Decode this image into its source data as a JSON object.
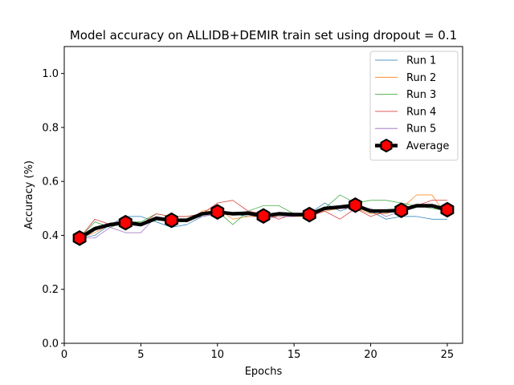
{
  "chart_data": {
    "type": "line",
    "title": "Model accuracy on ALLIDB+DEMIR train set using dropout = 0.1",
    "xlabel": "Epochs",
    "ylabel": "Accuracy (%)",
    "xlim": [
      0,
      26
    ],
    "ylim": [
      0.0,
      1.1
    ],
    "xticks": [
      0,
      5,
      10,
      15,
      20,
      25
    ],
    "yticks": [
      0.0,
      0.2,
      0.4,
      0.6,
      0.8,
      1.0
    ],
    "grid": false,
    "legend_position": "top-right",
    "x": [
      1,
      2,
      3,
      4,
      5,
      6,
      7,
      8,
      9,
      10,
      11,
      12,
      13,
      14,
      15,
      16,
      17,
      18,
      19,
      20,
      21,
      22,
      23,
      24,
      25
    ],
    "series": [
      {
        "name": "Run 1",
        "color": "#1f77b4",
        "values": [
          0.39,
          0.4,
          0.44,
          0.47,
          0.47,
          0.45,
          0.43,
          0.44,
          0.47,
          0.48,
          0.48,
          0.47,
          0.47,
          0.47,
          0.47,
          0.48,
          0.52,
          0.49,
          0.51,
          0.49,
          0.46,
          0.47,
          0.47,
          0.46,
          0.46
        ]
      },
      {
        "name": "Run 2",
        "color": "#ff7f0e",
        "values": [
          0.39,
          0.41,
          0.44,
          0.46,
          0.44,
          0.46,
          0.46,
          0.45,
          0.49,
          0.5,
          0.46,
          0.47,
          0.47,
          0.47,
          0.47,
          0.47,
          0.49,
          0.5,
          0.5,
          0.48,
          0.48,
          0.5,
          0.55,
          0.55,
          0.47
        ]
      },
      {
        "name": "Run 3",
        "color": "#2ca02c",
        "values": [
          0.39,
          0.45,
          0.43,
          0.45,
          0.45,
          0.48,
          0.47,
          0.47,
          0.48,
          0.49,
          0.44,
          0.49,
          0.51,
          0.51,
          0.48,
          0.48,
          0.5,
          0.55,
          0.52,
          0.53,
          0.53,
          0.52,
          0.51,
          0.5,
          0.49
        ]
      },
      {
        "name": "Run 4",
        "color": "#d62728",
        "values": [
          0.39,
          0.46,
          0.44,
          0.46,
          0.44,
          0.48,
          0.47,
          0.47,
          0.48,
          0.52,
          0.53,
          0.49,
          0.48,
          0.46,
          0.48,
          0.47,
          0.49,
          0.46,
          0.5,
          0.47,
          0.49,
          0.5,
          0.51,
          0.53,
          0.53
        ]
      },
      {
        "name": "Run 5",
        "color": "#9467bd",
        "values": [
          0.39,
          0.39,
          0.43,
          0.41,
          0.41,
          0.47,
          0.46,
          0.46,
          0.47,
          0.48,
          0.48,
          0.49,
          0.46,
          0.47,
          0.47,
          0.48,
          0.5,
          0.5,
          0.5,
          0.5,
          0.47,
          0.49,
          0.51,
          0.51,
          0.5
        ]
      },
      {
        "name": "Average",
        "color": "#000000",
        "marker_color": "#ff0000",
        "marker": "hexagon",
        "markevery": 3,
        "values": [
          0.39,
          0.425,
          0.44,
          0.447,
          0.44,
          0.463,
          0.456,
          0.456,
          0.48,
          0.487,
          0.48,
          0.482,
          0.472,
          0.48,
          0.477,
          0.477,
          0.5,
          0.505,
          0.512,
          0.49,
          0.49,
          0.493,
          0.51,
          0.51,
          0.495
        ]
      }
    ]
  }
}
